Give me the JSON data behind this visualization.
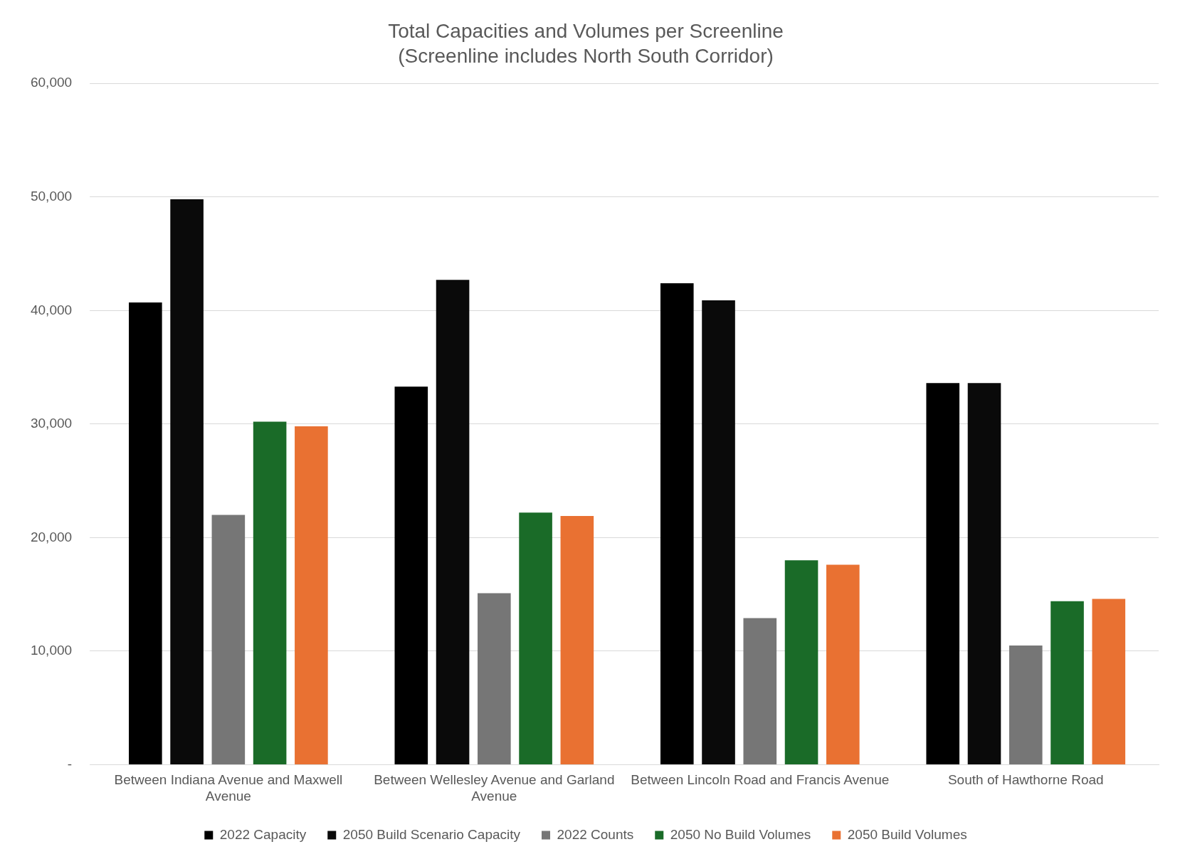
{
  "chart_data": {
    "type": "bar",
    "title": "Total Capacities and Volumes per Screenline",
    "subtitle": "(Screenline includes North South Corridor)",
    "categories": [
      "Between Indiana Avenue and Maxwell Avenue",
      "Between Wellesley Avenue and Garland Avenue",
      "Between Lincoln Road and Francis Avenue",
      "South of Hawthorne Road"
    ],
    "series": [
      {
        "name": "2022 Capacity",
        "color": "#000000",
        "values": [
          40700,
          33300,
          42400,
          33600
        ]
      },
      {
        "name": "2050 Build Scenario Capacity",
        "color": "#0a0a0a",
        "values": [
          49800,
          42700,
          40900,
          33600
        ]
      },
      {
        "name": "2022 Counts",
        "color": "#767676",
        "values": [
          22000,
          15100,
          12900,
          10500
        ]
      },
      {
        "name": "2050 No Build Volumes",
        "color": "#1a6b28",
        "values": [
          30200,
          22200,
          18000,
          14400
        ]
      },
      {
        "name": "2050 Build Volumes",
        "color": "#e97132",
        "values": [
          29800,
          21900,
          17600,
          14600
        ]
      }
    ],
    "ylim": [
      0,
      60000
    ],
    "yticks": [
      {
        "value": 0,
        "label": "-"
      },
      {
        "value": 10000,
        "label": "10,000"
      },
      {
        "value": 20000,
        "label": "20,000"
      },
      {
        "value": 30000,
        "label": "30,000"
      },
      {
        "value": 40000,
        "label": "40,000"
      },
      {
        "value": 50000,
        "label": "50,000"
      },
      {
        "value": 60000,
        "label": "60,000"
      }
    ],
    "grid": "y",
    "legend": "bottom"
  }
}
